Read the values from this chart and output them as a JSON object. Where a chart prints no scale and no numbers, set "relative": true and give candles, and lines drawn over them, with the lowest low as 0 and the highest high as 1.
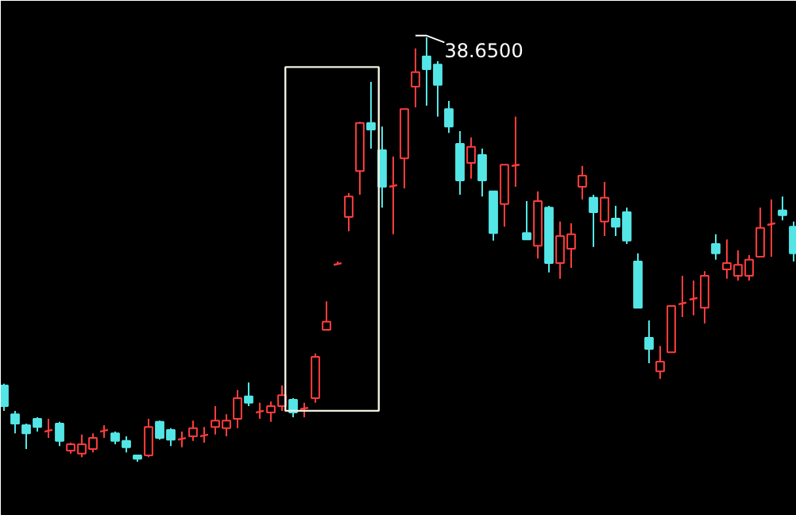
{
  "chart_data": {
    "type": "candlestick",
    "relative": true,
    "categories": [
      null,
      null,
      null,
      null,
      null,
      null,
      null,
      null,
      null,
      null,
      null,
      null,
      null,
      null,
      null,
      null,
      null,
      null,
      null,
      null,
      null,
      null,
      null,
      null,
      null,
      null,
      null,
      null,
      null,
      null,
      null,
      null,
      null,
      null,
      null,
      null,
      null,
      null,
      null,
      null,
      null,
      null,
      null,
      null,
      null,
      null,
      null,
      null,
      null,
      null,
      null,
      null,
      null,
      null,
      null,
      null,
      null,
      null,
      null,
      null,
      null,
      null,
      null,
      null,
      null,
      null,
      null,
      null,
      null,
      null,
      null,
      null
    ],
    "ohlc": [
      [
        0.18,
        0.184,
        0.12,
        0.131
      ],
      [
        0.112,
        0.12,
        0.067,
        0.09
      ],
      [
        0.086,
        0.09,
        0.03,
        0.067
      ],
      [
        0.101,
        0.105,
        0.071,
        0.082
      ],
      [
        0.071,
        0.101,
        0.056,
        0.075
      ],
      [
        0.09,
        0.094,
        0.037,
        0.049
      ],
      [
        0.026,
        0.045,
        0.019,
        0.041
      ],
      [
        0.019,
        0.064,
        0.011,
        0.041
      ],
      [
        0.03,
        0.067,
        0.022,
        0.056
      ],
      [
        0.071,
        0.086,
        0.056,
        0.075
      ],
      [
        0.067,
        0.071,
        0.041,
        0.049
      ],
      [
        0.049,
        0.06,
        0.022,
        0.034
      ],
      [
        0.015,
        0.015,
        0.0,
        0.007
      ],
      [
        0.015,
        0.101,
        0.011,
        0.082
      ],
      [
        0.094,
        0.097,
        0.052,
        0.056
      ],
      [
        0.075,
        0.079,
        0.037,
        0.052
      ],
      [
        0.052,
        0.071,
        0.034,
        0.056
      ],
      [
        0.06,
        0.097,
        0.049,
        0.079
      ],
      [
        0.06,
        0.082,
        0.045,
        0.064
      ],
      [
        0.082,
        0.131,
        0.064,
        0.097
      ],
      [
        0.079,
        0.112,
        0.06,
        0.097
      ],
      [
        0.101,
        0.169,
        0.079,
        0.15
      ],
      [
        0.154,
        0.187,
        0.131,
        0.139
      ],
      [
        0.116,
        0.139,
        0.101,
        0.12
      ],
      [
        0.116,
        0.142,
        0.094,
        0.131
      ],
      [
        0.131,
        0.18,
        0.12,
        0.157
      ],
      [
        0.146,
        0.15,
        0.105,
        0.116
      ],
      [
        0.124,
        0.139,
        0.105,
        0.127
      ],
      [
        0.15,
        0.255,
        0.139,
        0.247
      ],
      [
        0.311,
        0.378,
        0.311,
        0.33
      ],
      [
        0.464,
        0.472,
        0.464,
        0.468
      ],
      [
        0.577,
        0.633,
        0.543,
        0.625
      ],
      [
        0.685,
        0.801,
        0.629,
        0.798
      ],
      [
        0.798,
        0.895,
        0.738,
        0.783
      ],
      [
        0.734,
        0.79,
        0.599,
        0.648
      ],
      [
        0.648,
        0.719,
        0.536,
        0.652
      ],
      [
        0.715,
        0.831,
        0.644,
        0.831
      ],
      [
        0.884,
        0.974,
        0.835,
        0.918
      ],
      [
        0.955,
        1.0,
        0.839,
        0.925
      ],
      [
        0.936,
        0.944,
        0.813,
        0.888
      ],
      [
        0.831,
        0.85,
        0.775,
        0.79
      ],
      [
        0.749,
        0.779,
        0.629,
        0.663
      ],
      [
        0.704,
        0.764,
        0.667,
        0.742
      ],
      [
        0.723,
        0.738,
        0.625,
        0.663
      ],
      [
        0.637,
        0.637,
        0.521,
        0.539
      ],
      [
        0.607,
        0.7,
        0.554,
        0.7
      ],
      [
        0.697,
        0.813,
        0.648,
        0.7
      ],
      [
        0.539,
        0.614,
        0.524,
        0.524
      ],
      [
        0.509,
        0.637,
        0.479,
        0.614
      ],
      [
        0.599,
        0.603,
        0.446,
        0.468
      ],
      [
        0.468,
        0.566,
        0.431,
        0.532
      ],
      [
        0.502,
        0.562,
        0.457,
        0.536
      ],
      [
        0.648,
        0.697,
        0.618,
        0.674
      ],
      [
        0.622,
        0.629,
        0.506,
        0.588
      ],
      [
        0.566,
        0.659,
        0.532,
        0.622
      ],
      [
        0.573,
        0.603,
        0.532,
        0.554
      ],
      [
        0.588,
        0.599,
        0.513,
        0.521
      ],
      [
        0.472,
        0.491,
        0.363,
        0.363
      ],
      [
        0.292,
        0.333,
        0.232,
        0.266
      ],
      [
        0.213,
        0.273,
        0.195,
        0.236
      ],
      [
        0.258,
        0.367,
        0.258,
        0.367
      ],
      [
        0.371,
        0.438,
        0.341,
        0.375
      ],
      [
        0.382,
        0.427,
        0.345,
        0.386
      ],
      [
        0.363,
        0.449,
        0.326,
        0.438
      ],
      [
        0.513,
        0.536,
        0.476,
        0.491
      ],
      [
        0.453,
        0.524,
        0.431,
        0.468
      ],
      [
        0.438,
        0.498,
        0.427,
        0.464
      ],
      [
        0.438,
        0.487,
        0.427,
        0.476
      ],
      [
        0.483,
        0.599,
        0.483,
        0.551
      ],
      [
        0.558,
        0.618,
        0.483,
        0.562
      ],
      [
        0.592,
        0.625,
        0.569,
        0.581
      ],
      [
        0.554,
        0.566,
        0.472,
        0.491
      ]
    ],
    "colors": [
      "#54e6e6",
      "#54e6e6",
      "#54e6e6",
      "#54e6e6",
      "#ff3c3c",
      "#54e6e6",
      "#ff3c3c",
      "#ff3c3c",
      "#ff3c3c",
      "#ff3c3c",
      "#54e6e6",
      "#54e6e6",
      "#54e6e6",
      "#ff3c3c",
      "#54e6e6",
      "#54e6e6",
      "#ff3c3c",
      "#ff3c3c",
      "#ff3c3c",
      "#ff3c3c",
      "#ff3c3c",
      "#ff3c3c",
      "#54e6e6",
      "#ff3c3c",
      "#ff3c3c",
      "#ff3c3c",
      "#54e6e6",
      "#ff3c3c",
      "#ff3c3c",
      "#ff3c3c",
      "#ff3c3c",
      "#ff3c3c",
      "#ff3c3c",
      "#54e6e6",
      "#54e6e6",
      "#ff3c3c",
      "#ff3c3c",
      "#ff3c3c",
      "#54e6e6",
      "#54e6e6",
      "#54e6e6",
      "#54e6e6",
      "#ff3c3c",
      "#54e6e6",
      "#54e6e6",
      "#ff3c3c",
      "#ff3c3c",
      "#54e6e6",
      "#ff3c3c",
      "#54e6e6",
      "#ff3c3c",
      "#ff3c3c",
      "#ff3c3c",
      "#54e6e6",
      "#ff3c3c",
      "#54e6e6",
      "#54e6e6",
      "#54e6e6",
      "#54e6e6",
      "#ff3c3c",
      "#ff3c3c",
      "#ff3c3c",
      "#ff3c3c",
      "#ff3c3c",
      "#54e6e6",
      "#ff3c3c",
      "#ff3c3c",
      "#ff3c3c",
      "#ff3c3c",
      "#ff3c3c",
      "#54e6e6",
      "#54e6e6"
    ],
    "annotations": [
      "38.6500"
    ]
  }
}
